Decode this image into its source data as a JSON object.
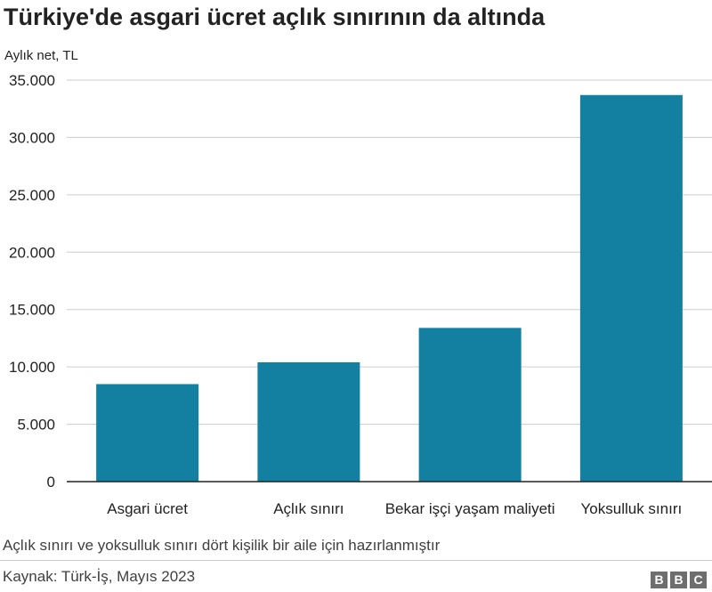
{
  "chart_data": {
    "type": "bar",
    "title": "Türkiye'de asgari ücret açlık sınırının da altında",
    "ylabel": "Aylık net, TL",
    "categories": [
      "Asgari ücret",
      "Açlık sınırı",
      "Bekar işçi yaşam maliyeti",
      "Yoksulluk sınırı"
    ],
    "values": [
      8500,
      10400,
      13400,
      33700
    ],
    "ylim": [
      0,
      35000
    ],
    "yticks": [
      0,
      5000,
      10000,
      15000,
      20000,
      25000,
      30000,
      35000
    ],
    "ytick_labels": [
      "0",
      "5.000",
      "10.000",
      "15.000",
      "20.000",
      "25.000",
      "30.000",
      "35.000"
    ],
    "grid": true,
    "bar_color": "#1380a1"
  },
  "footnote": "Açlık sınırı ve yoksulluk sınırı dört kişilik bir aile için hazırlanmıştır",
  "source": "Kaynak: Türk-İş, Mayıs 2023",
  "logo": [
    "B",
    "B",
    "C"
  ]
}
